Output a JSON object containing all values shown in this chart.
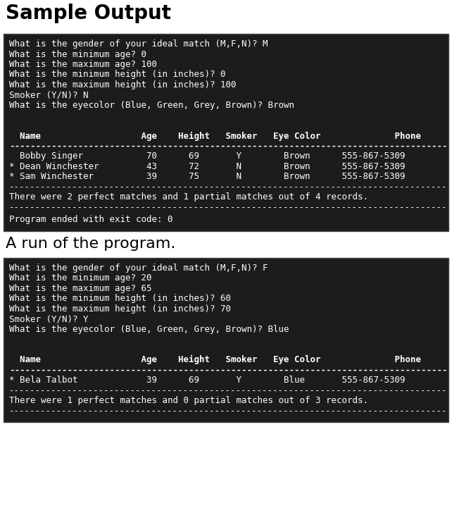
{
  "title1": "Sample Output",
  "title2": "A run of the program.",
  "page_bg": "#ffffff",
  "terminal_bg": "#1c1c1c",
  "terminal_border": "#444444",
  "text_color": "#ffffff",
  "title_color": "#000000",
  "block1_prompt_lines": [
    "What is the gender of your ideal match (M,F,N)? M",
    "What is the minimum age? 0",
    "What is the maximum age? 100",
    "What is the minimum height (in inches)? 0",
    "What is the maximum height (in inches)? 100",
    "Smoker (Y/N)? N",
    "What is the eyecolor (Blue, Green, Grey, Brown)? Brown"
  ],
  "block1_header": "  Name                   Age    Height   Smoker   Eye Color              Phone",
  "block1_sep": "-----------------------------------------------------------------------------------",
  "block1_rows": [
    "  Bobby Singer            70      69       Y        Brown      555-867-5309",
    "* Dean Winchester         43      72       N        Brown      555-867-5309",
    "* Sam Winchester          39      75       N        Brown      555-867-5309"
  ],
  "block1_bot_sep": "-----------------------------------------------------------------------------------",
  "block1_summary": "There were 2 perfect matches and 1 partial matches out of 4 records.",
  "block1_sum_sep": "-----------------------------------------------------------------------------------",
  "block1_exit": "Program ended with exit code: 0",
  "block2_prompt_lines": [
    "What is the gender of your ideal match (M,F,N)? F",
    "What is the minimum age? 20",
    "What is the maximum age? 65",
    "What is the minimum height (in inches)? 60",
    "What is the maximum height (in inches)? 70",
    "Smoker (Y/N)? Y",
    "What is the eyecolor (Blue, Green, Grey, Brown)? Blue"
  ],
  "block2_header": "  Name                   Age    Height   Smoker   Eye Color              Phone",
  "block2_sep": "-----------------------------------------------------------------------------------",
  "block2_rows": [
    "* Bela Talbot             39      69       Y        Blue       555-867-5309"
  ],
  "block2_bot_sep": "-----------------------------------------------------------------------------------",
  "block2_summary": "There were 1 perfect matches and 0 partial matches out of 3 records.",
  "block2_sum_sep": "-----------------------------------------------------------------------------------"
}
